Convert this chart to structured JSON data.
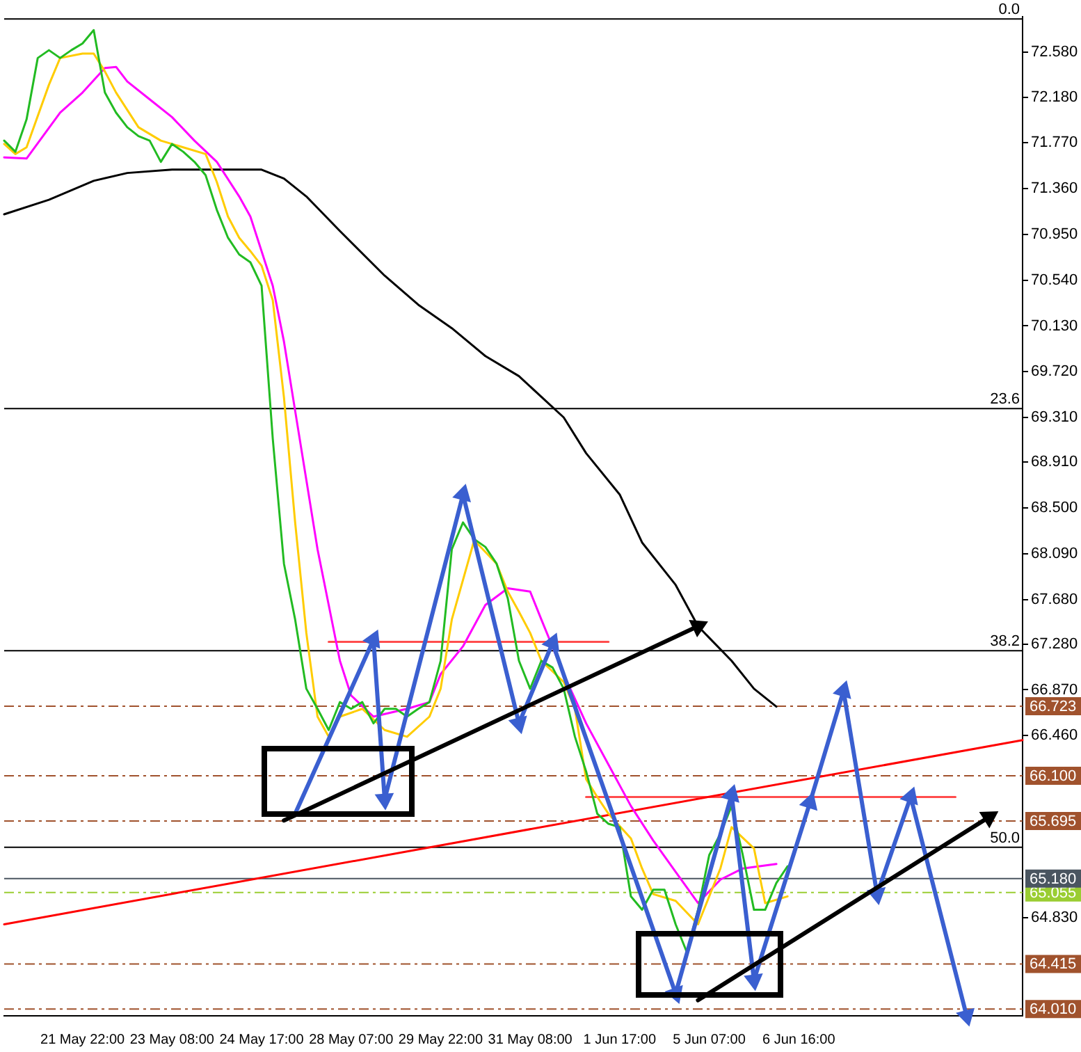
{
  "chart_data": {
    "type": "line",
    "legend": false,
    "categories": [
      null,
      null,
      null,
      null,
      null,
      null,
      null,
      "21 May 22:00",
      null,
      null,
      null,
      null,
      null,
      null,
      null,
      "23 May 08:00",
      null,
      null,
      null,
      null,
      null,
      null,
      null,
      "24 May 17:00",
      null,
      null,
      null,
      null,
      null,
      null,
      null,
      "28 May 07:00",
      null,
      null,
      null,
      null,
      null,
      null,
      null,
      "29 May 22:00",
      null,
      null,
      null,
      null,
      null,
      null,
      null,
      "31 May 08:00",
      null,
      null,
      null,
      null,
      null,
      null,
      null,
      "1 Jun 17:00",
      null,
      null,
      null,
      null,
      null,
      null,
      null,
      "5 Jun 07:00",
      null,
      null,
      null,
      null,
      null,
      null,
      null,
      "6 Jun 16:00",
      null,
      null,
      null,
      null,
      null,
      null,
      null,
      null,
      null,
      null,
      null,
      null,
      null,
      null,
      null,
      null,
      null,
      null,
      null,
      null
    ],
    "ylim": [
      63.95,
      72.9
    ],
    "yticks": [
      {
        "value": 72.58,
        "label": "72.580"
      },
      {
        "value": 72.18,
        "label": "72.180"
      },
      {
        "value": 71.77,
        "label": "71.770"
      },
      {
        "value": 71.36,
        "label": "71.360"
      },
      {
        "value": 70.95,
        "label": "70.950"
      },
      {
        "value": 70.54,
        "label": "70.540"
      },
      {
        "value": 70.13,
        "label": "70.130"
      },
      {
        "value": 69.72,
        "label": "69.720"
      },
      {
        "value": 69.31,
        "label": "69.310"
      },
      {
        "value": 68.91,
        "label": "68.910"
      },
      {
        "value": 68.5,
        "label": "68.500"
      },
      {
        "value": 68.09,
        "label": "68.090"
      },
      {
        "value": 67.68,
        "label": "67.680"
      },
      {
        "value": 67.28,
        "label": "67.280"
      },
      {
        "value": 66.87,
        "label": "66.870"
      },
      {
        "value": 66.46,
        "label": "66.460"
      },
      {
        "value": 64.83,
        "label": "64.830"
      }
    ],
    "ref_lines": [
      {
        "axis": "y",
        "value": 72.88,
        "color": "#000000",
        "line_style": "solid"
      },
      {
        "axis": "y",
        "value": 69.39,
        "color": "#000000",
        "line_style": "solid"
      },
      {
        "axis": "y",
        "value": 67.22,
        "color": "#000000",
        "line_style": "solid"
      },
      {
        "axis": "y",
        "value": 65.46,
        "color": "#000000",
        "line_style": "solid"
      },
      {
        "axis": "y",
        "value": 66.723,
        "label": "66.723",
        "color": "#a0522d",
        "line_style": "dashed"
      },
      {
        "axis": "y",
        "value": 66.1,
        "label": "66.100",
        "color": "#a0522d",
        "line_style": "dashed"
      },
      {
        "axis": "y",
        "value": 65.695,
        "label": "65.695",
        "color": "#a0522d",
        "line_style": "dashed"
      },
      {
        "axis": "y",
        "value": 65.055,
        "label": "65.055",
        "color": "#9acd32",
        "line_style": "dashed"
      },
      {
        "axis": "y",
        "value": 65.18,
        "label": "65.180",
        "color": "#4a5560",
        "line_style": "solid"
      },
      {
        "axis": "y",
        "value": 64.415,
        "label": "64.415",
        "color": "#a0522d",
        "line_style": "dashed"
      },
      {
        "axis": "y",
        "value": 64.01,
        "label": "64.010",
        "color": "#a0522d",
        "line_style": "dashed"
      }
    ],
    "annotations": [
      {
        "text": "0.0",
        "y": 72.88
      },
      {
        "text": "23.6",
        "y": 69.39
      },
      {
        "text": "38.2",
        "y": 67.22
      },
      {
        "text": "50.0",
        "y": 65.46
      }
    ],
    "series": [
      {
        "color": "#22bb22",
        "values": [
          71.79,
          71.69,
          71.98,
          72.53,
          72.6,
          72.53,
          72.6,
          72.66,
          72.78,
          72.22,
          72.04,
          71.91,
          71.83,
          71.79,
          71.6,
          71.76,
          71.69,
          71.6,
          71.48,
          71.17,
          70.92,
          70.77,
          70.7,
          70.49,
          69.12,
          68.0,
          67.5,
          66.88,
          66.7,
          66.51,
          66.76,
          66.7,
          66.76,
          66.57,
          66.7,
          66.7,
          66.63,
          66.7,
          66.76,
          67.13,
          68.13,
          68.37,
          68.22,
          68.15,
          68.0,
          67.69,
          67.13,
          66.88,
          67.13,
          67.07,
          66.88,
          66.45,
          66.14,
          65.76,
          65.67,
          65.64,
          65.02,
          64.9,
          65.08,
          65.08,
          64.77,
          64.52,
          64.9,
          65.39,
          65.58,
          65.83,
          65.39,
          64.9,
          64.9,
          65.14,
          65.29,
          null,
          null,
          null,
          null,
          null,
          null,
          null,
          null,
          null,
          null,
          null,
          null,
          null,
          null,
          null,
          null,
          null,
          null,
          null,
          null,
          null
        ]
      },
      {
        "color": "#ffcc00",
        "values": [
          71.76,
          71.67,
          71.73,
          null,
          72.29,
          72.53,
          null,
          72.57,
          72.57,
          72.41,
          72.22,
          null,
          71.91,
          null,
          71.79,
          null,
          71.73,
          null,
          71.67,
          71.42,
          71.11,
          70.92,
          70.8,
          70.67,
          70.36,
          69.49,
          68.37,
          67.38,
          66.63,
          66.45,
          66.63,
          null,
          66.7,
          null,
          66.51,
          null,
          66.45,
          null,
          66.63,
          66.88,
          67.5,
          null,
          68.21,
          null,
          68.0,
          67.75,
          67.57,
          67.38,
          67.13,
          null,
          66.94,
          66.7,
          66.07,
          65.91,
          65.76,
          null,
          65.54,
          65.27,
          65.04,
          null,
          64.98,
          null,
          64.77,
          null,
          65.27,
          65.64,
          null,
          65.45,
          64.96,
          null,
          65.02,
          null,
          null,
          null,
          null,
          null,
          null,
          null,
          null,
          null,
          null,
          null,
          null,
          null,
          null,
          null,
          null,
          null,
          null,
          null,
          null,
          null
        ]
      },
      {
        "color": "#ff00ff",
        "values": [
          71.64,
          null,
          71.63,
          null,
          null,
          72.04,
          null,
          72.22,
          null,
          72.44,
          72.45,
          72.32,
          null,
          72.16,
          null,
          72.0,
          null,
          71.79,
          null,
          71.6,
          null,
          71.29,
          71.11,
          null,
          70.49,
          69.99,
          69.37,
          68.75,
          68.13,
          67.63,
          67.13,
          66.82,
          null,
          66.63,
          null,
          null,
          66.7,
          null,
          66.76,
          67.01,
          null,
          67.26,
          null,
          67.63,
          null,
          67.78,
          null,
          67.75,
          67.5,
          null,
          67.01,
          null,
          66.57,
          null,
          66.2,
          null,
          65.83,
          null,
          65.52,
          null,
          65.24,
          null,
          64.96,
          null,
          65.17,
          null,
          65.27,
          null,
          null,
          65.31,
          null,
          null,
          null,
          null,
          null,
          null,
          null,
          null,
          null,
          null,
          null,
          null,
          null,
          null,
          null,
          null,
          null,
          null,
          null,
          null,
          null,
          null
        ]
      },
      {
        "color": "#000000",
        "values": [
          71.13,
          null,
          null,
          null,
          71.26,
          null,
          null,
          null,
          71.43,
          null,
          null,
          71.5,
          null,
          null,
          null,
          71.53,
          null,
          null,
          null,
          71.53,
          null,
          null,
          null,
          71.53,
          null,
          71.45,
          null,
          71.29,
          null,
          null,
          70.98,
          null,
          null,
          null,
          70.58,
          null,
          null,
          70.32,
          null,
          null,
          70.11,
          null,
          null,
          69.86,
          null,
          null,
          69.68,
          null,
          null,
          null,
          69.31,
          null,
          68.99,
          null,
          null,
          68.62,
          null,
          68.19,
          null,
          null,
          67.81,
          null,
          67.44,
          null,
          null,
          67.13,
          null,
          66.88,
          null,
          66.72,
          null,
          null,
          null,
          null,
          null,
          null,
          null,
          null,
          null,
          null,
          null,
          null,
          null,
          null,
          null,
          null,
          null,
          null,
          null,
          null,
          null,
          null
        ]
      },
      {
        "color": "#ff0000",
        "values": [
          64.77,
          null,
          null,
          null,
          null,
          null,
          null,
          null,
          null,
          null,
          null,
          null,
          null,
          null,
          null,
          null,
          null,
          null,
          null,
          null,
          null,
          null,
          null,
          null,
          null,
          null,
          null,
          null,
          null,
          null,
          null,
          null,
          null,
          null,
          null,
          null,
          null,
          null,
          null,
          null,
          null,
          null,
          null,
          null,
          null,
          null,
          null,
          null,
          null,
          null,
          null,
          null,
          null,
          null,
          null,
          null,
          null,
          null,
          null,
          null,
          null,
          null,
          null,
          null,
          null,
          null,
          null,
          null,
          null,
          null,
          null,
          null,
          null,
          null,
          null,
          null,
          null,
          null,
          null,
          null,
          null,
          null,
          null,
          null,
          null,
          null,
          null,
          null,
          null,
          null,
          null,
          66.42
        ]
      },
      {
        "color": "#ff4d4d",
        "values": [
          null,
          null,
          null,
          null,
          null,
          null,
          null,
          null,
          null,
          null,
          null,
          null,
          null,
          null,
          null,
          null,
          null,
          null,
          null,
          null,
          null,
          null,
          null,
          null,
          null,
          null,
          null,
          null,
          null,
          67.3,
          null,
          null,
          null,
          null,
          null,
          null,
          null,
          null,
          null,
          null,
          null,
          null,
          null,
          null,
          null,
          null,
          null,
          null,
          null,
          null,
          null,
          null,
          null,
          null,
          67.3,
          null,
          null,
          null,
          null,
          null,
          null,
          null,
          null,
          null,
          null,
          null,
          null,
          null,
          null,
          null,
          null,
          null,
          null,
          null,
          null,
          null,
          null,
          null,
          null,
          null,
          null,
          null,
          null,
          null,
          null,
          null,
          null,
          null,
          null,
          null,
          null,
          null
        ]
      },
      {
        "color": "#ff4d4d",
        "values": [
          null,
          null,
          null,
          null,
          null,
          null,
          null,
          null,
          null,
          null,
          null,
          null,
          null,
          null,
          null,
          null,
          null,
          null,
          null,
          null,
          null,
          null,
          null,
          null,
          null,
          null,
          null,
          null,
          null,
          null,
          null,
          null,
          null,
          null,
          null,
          null,
          null,
          null,
          null,
          null,
          null,
          null,
          null,
          null,
          null,
          null,
          null,
          null,
          null,
          null,
          null,
          null,
          65.91,
          null,
          null,
          null,
          null,
          null,
          null,
          null,
          null,
          null,
          null,
          null,
          null,
          null,
          null,
          null,
          null,
          null,
          null,
          null,
          null,
          null,
          null,
          null,
          null,
          null,
          null,
          null,
          null,
          null,
          null,
          null,
          null,
          65.91,
          null,
          null,
          null,
          null,
          null,
          null
        ]
      },
      {
        "color": "#000000",
        "marker": "triangle",
        "values": [
          null,
          null,
          null,
          null,
          null,
          null,
          null,
          null,
          null,
          null,
          null,
          null,
          null,
          null,
          null,
          null,
          null,
          null,
          null,
          null,
          null,
          null,
          null,
          null,
          null,
          65.7,
          null,
          null,
          null,
          null,
          null,
          null,
          null,
          null,
          null,
          null,
          null,
          null,
          null,
          null,
          null,
          null,
          null,
          null,
          null,
          null,
          null,
          null,
          null,
          null,
          null,
          null,
          null,
          null,
          null,
          null,
          null,
          null,
          null,
          null,
          null,
          null,
          67.44,
          null,
          null,
          null,
          null,
          null,
          null,
          null,
          null,
          null,
          null,
          null,
          null,
          null,
          null,
          null,
          null,
          null,
          null,
          null,
          null,
          null,
          null,
          null,
          null,
          null,
          null,
          null,
          null,
          null
        ]
      },
      {
        "color": "#000000",
        "marker": "triangle",
        "values": [
          null,
          null,
          null,
          null,
          null,
          null,
          null,
          null,
          null,
          null,
          null,
          null,
          null,
          null,
          null,
          null,
          null,
          null,
          null,
          null,
          null,
          null,
          null,
          null,
          null,
          null,
          null,
          null,
          null,
          null,
          null,
          null,
          null,
          null,
          null,
          null,
          null,
          null,
          null,
          null,
          null,
          null,
          null,
          null,
          null,
          null,
          null,
          null,
          null,
          null,
          null,
          null,
          null,
          null,
          null,
          null,
          null,
          null,
          null,
          null,
          null,
          null,
          64.09,
          null,
          null,
          null,
          null,
          null,
          null,
          null,
          null,
          null,
          null,
          null,
          null,
          null,
          null,
          null,
          null,
          null,
          null,
          null,
          null,
          null,
          null,
          null,
          null,
          null,
          65.73,
          null,
          null,
          null
        ]
      },
      {
        "color": "#3a5fd0",
        "marker": "triangle",
        "values": [
          null,
          null,
          null,
          null,
          null,
          null,
          null,
          null,
          null,
          null,
          null,
          null,
          null,
          null,
          null,
          null,
          null,
          null,
          null,
          null,
          null,
          null,
          null,
          null,
          null,
          null,
          65.76,
          null,
          null,
          null,
          null,
          null,
          null,
          67.32,
          65.89,
          null,
          null,
          null,
          null,
          null,
          null,
          68.62,
          null,
          null,
          null,
          null,
          66.57,
          null,
          null,
          67.29,
          null,
          null,
          null,
          null,
          null,
          null,
          null,
          null,
          null,
          null,
          64.15,
          null,
          null,
          null,
          null,
          65.93,
          null,
          64.27,
          null,
          null,
          null,
          null,
          65.86,
          null,
          null,
          66.86,
          null,
          null,
          65.04,
          null,
          null,
          65.91,
          null,
          null,
          null,
          null,
          63.95,
          null,
          null,
          null,
          null,
          null
        ]
      }
    ]
  }
}
